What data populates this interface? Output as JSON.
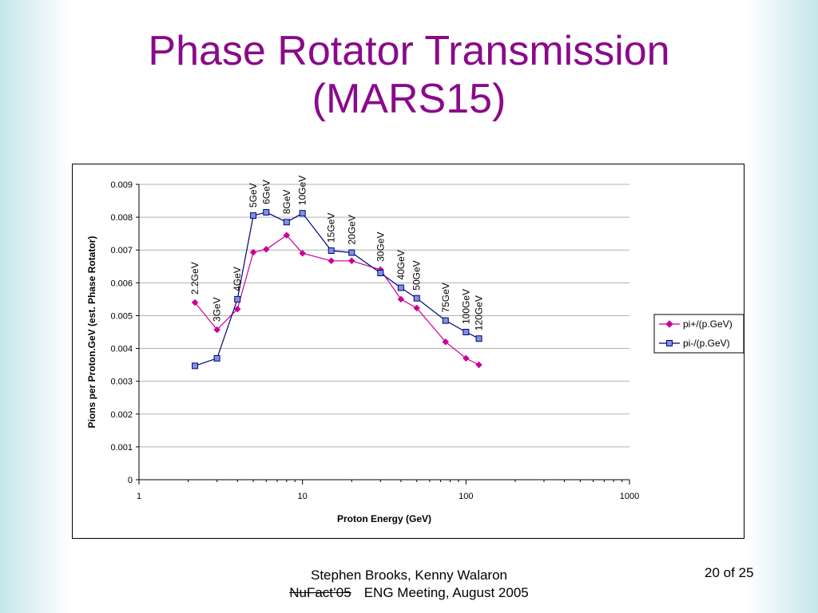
{
  "slide": {
    "title_line1": "Phase Rotator Transmission",
    "title_line2": "(MARS15)",
    "footer_authors": "Stephen Brooks, Kenny Walaron",
    "footer_event_struck": "NuFact’05",
    "footer_event": "ENG Meeting, August 2005",
    "page": "20 of 25"
  },
  "colors": {
    "title": "#8a0a8a",
    "pi_plus": "#cc0099",
    "pi_minus": "#000080",
    "marker_fill_minus": "#7d94d8"
  },
  "chart_data": {
    "type": "scatter",
    "xscale": "log",
    "xlim": [
      1,
      1000
    ],
    "ylim": [
      0,
      0.009
    ],
    "xlabel": "Proton Energy (GeV)",
    "ylabel": "Pions per Proton.GeV (est. Phase Rotator)",
    "x_ticks": [
      "1",
      "10",
      "100",
      "1000"
    ],
    "y_ticks": [
      "0",
      "0.001",
      "0.002",
      "0.003",
      "0.004",
      "0.005",
      "0.006",
      "0.007",
      "0.008",
      "0.009"
    ],
    "grid": "horizontal",
    "legend": "right",
    "x": [
      2.2,
      3,
      4,
      5,
      6,
      8,
      10,
      15,
      20,
      30,
      40,
      50,
      75,
      100,
      120
    ],
    "point_labels": [
      "2.2GeV",
      "3GeV",
      "4GeV",
      "5GeV",
      "6GeV",
      "8GeV",
      "10GeV",
      "15GeV",
      "20GeV",
      "30GeV",
      "40GeV",
      "50GeV",
      "75GeV",
      "100GeV",
      "120GeV"
    ],
    "series": [
      {
        "name": "pi+/(p.GeV)",
        "marker": "diamond",
        "values": [
          0.0054,
          0.00457,
          0.0052,
          0.00693,
          0.00702,
          0.00745,
          0.0069,
          0.00667,
          0.00667,
          0.0064,
          0.0055,
          0.00523,
          0.0042,
          0.0037,
          0.0035
        ]
      },
      {
        "name": "pi-/(p.GeV)",
        "marker": "square",
        "values": [
          0.00347,
          0.0037,
          0.0055,
          0.00805,
          0.00815,
          0.00785,
          0.00812,
          0.00698,
          0.00692,
          0.0063,
          0.00585,
          0.00553,
          0.00485,
          0.0045,
          0.0043
        ]
      }
    ]
  }
}
